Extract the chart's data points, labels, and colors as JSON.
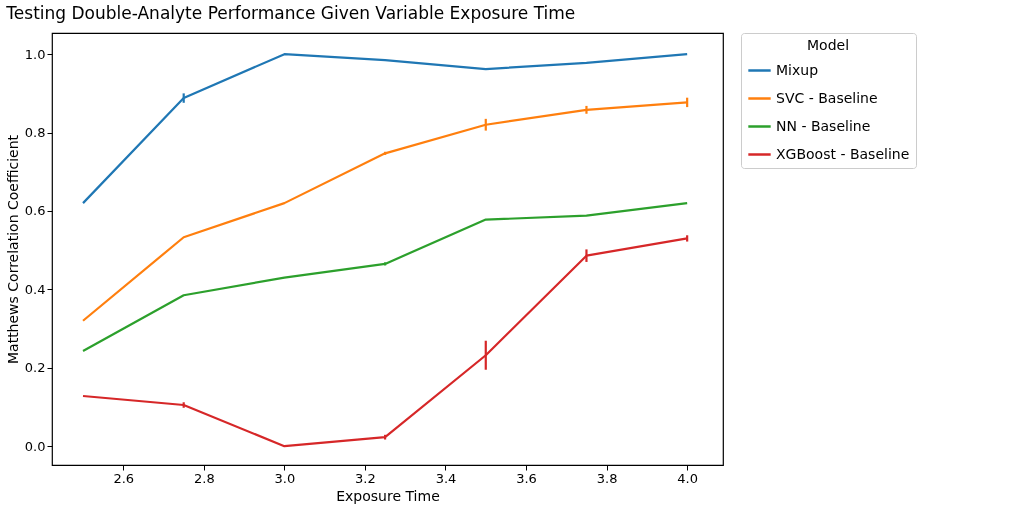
{
  "chart_data": {
    "type": "line",
    "title": "Testing Double-Analyte Performance Given Variable Exposure Time",
    "xlabel": "Exposure Time",
    "ylabel": "Matthews Correlation Coefficient",
    "legend_title": "Model",
    "x": [
      2.5,
      2.75,
      3.0,
      3.25,
      3.5,
      3.75,
      4.0
    ],
    "series": [
      {
        "name": "Mixup",
        "color": "#1f77b4",
        "values": [
          0.62,
          0.888,
          1.0,
          0.985,
          0.962,
          0.978,
          1.0
        ],
        "errors": [
          null,
          0.012,
          null,
          null,
          null,
          null,
          null
        ]
      },
      {
        "name": "SVC - Baseline",
        "color": "#ff7f0e",
        "values": [
          0.32,
          0.533,
          0.62,
          0.747,
          0.82,
          0.858,
          0.877
        ],
        "errors": [
          null,
          null,
          null,
          0.004,
          0.015,
          0.01,
          0.012
        ]
      },
      {
        "name": "NN - Baseline",
        "color": "#2ca02c",
        "values": [
          0.243,
          0.385,
          0.43,
          0.465,
          0.578,
          0.588,
          0.62
        ],
        "errors": [
          null,
          null,
          null,
          0.004,
          null,
          null,
          null
        ]
      },
      {
        "name": "XGBoost - Baseline",
        "color": "#d62728",
        "values": [
          0.128,
          0.105,
          0.0,
          0.023,
          0.232,
          0.486,
          0.53
        ],
        "errors": [
          null,
          0.007,
          null,
          0.006,
          0.037,
          0.016,
          0.008
        ]
      }
    ],
    "xlim": [
      2.423,
      4.089
    ],
    "ylim": [
      -0.048,
      1.054
    ],
    "xticks": [
      {
        "value": 2.6,
        "label": "2.6"
      },
      {
        "value": 2.8,
        "label": "2.8"
      },
      {
        "value": 3.0,
        "label": "3.0"
      },
      {
        "value": 3.2,
        "label": "3.2"
      },
      {
        "value": 3.4,
        "label": "3.4"
      },
      {
        "value": 3.6,
        "label": "3.6"
      },
      {
        "value": 3.8,
        "label": "3.8"
      },
      {
        "value": 4.0,
        "label": "4.0"
      }
    ],
    "yticks": [
      {
        "value": 0,
        "label": "0.0"
      },
      {
        "value": 0.2,
        "label": "0.2"
      },
      {
        "value": 0.4,
        "label": "0.4"
      },
      {
        "value": 0.6,
        "label": "0.6"
      },
      {
        "value": 0.8,
        "label": "0.8"
      },
      {
        "value": 1.0,
        "label": "1.0"
      }
    ],
    "grid": false,
    "legend": "right",
    "marker": "none",
    "line_style": "solid"
  }
}
